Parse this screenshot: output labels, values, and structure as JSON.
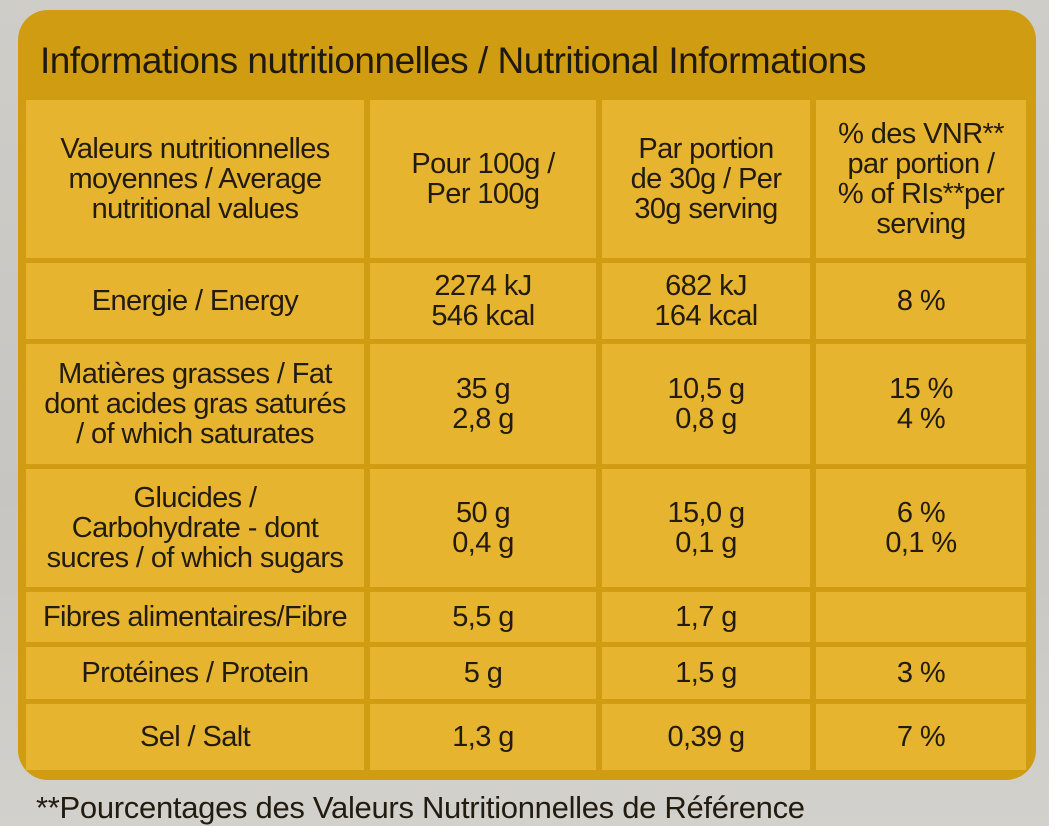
{
  "title": "Informations nutritionnelles / Nutritional Informations",
  "header": {
    "col1": [
      "Valeurs nutritionnelles",
      "moyennes / Average",
      "nutritional values"
    ],
    "col2": [
      "Pour 100g /",
      "Per 100g"
    ],
    "col3": [
      "Par portion",
      "de 30g / Per",
      "30g serving"
    ],
    "col4": [
      "% des VNR**",
      "par portion /",
      "% of RIs**per",
      "serving"
    ]
  },
  "rows": [
    {
      "label": [
        "Energie / Energy"
      ],
      "per100": [
        "2274 kJ",
        "546 kcal"
      ],
      "perPortion": [
        "682 kJ",
        "164 kcal"
      ],
      "ri": [
        "8 %"
      ]
    },
    {
      "label": [
        "Matières grasses / Fat",
        "dont acides gras saturés",
        "/ of which saturates"
      ],
      "per100": [
        "35 g",
        "2,8 g"
      ],
      "perPortion": [
        "10,5 g",
        "0,8 g"
      ],
      "ri": [
        "15 %",
        "4 %"
      ]
    },
    {
      "label": [
        "Glucides /",
        "Carbohydrate - dont",
        "sucres / of which sugars"
      ],
      "per100": [
        "50 g",
        "0,4 g"
      ],
      "perPortion": [
        "15,0 g",
        "0,1 g"
      ],
      "ri": [
        "6 %",
        "0,1 %"
      ]
    },
    {
      "label": [
        "Fibres alimentaires/Fibre"
      ],
      "per100": [
        "5,5 g"
      ],
      "perPortion": [
        "1,7 g"
      ],
      "ri": []
    },
    {
      "label": [
        "Protéines / Protein"
      ],
      "per100": [
        "5 g"
      ],
      "perPortion": [
        "1,5 g"
      ],
      "ri": [
        "3 %"
      ]
    },
    {
      "label": [
        "Sel / Salt"
      ],
      "per100": [
        "1,3 g"
      ],
      "perPortion": [
        "0,39 g"
      ],
      "ri": [
        "7 %"
      ]
    }
  ],
  "footnote": "**Pourcentages des Valeurs Nutritionnelles de Référence",
  "colors": {
    "panel": "#cf9c12",
    "cell": "#e7b42f",
    "text": "#221b10",
    "background": "#c9c7c3"
  }
}
